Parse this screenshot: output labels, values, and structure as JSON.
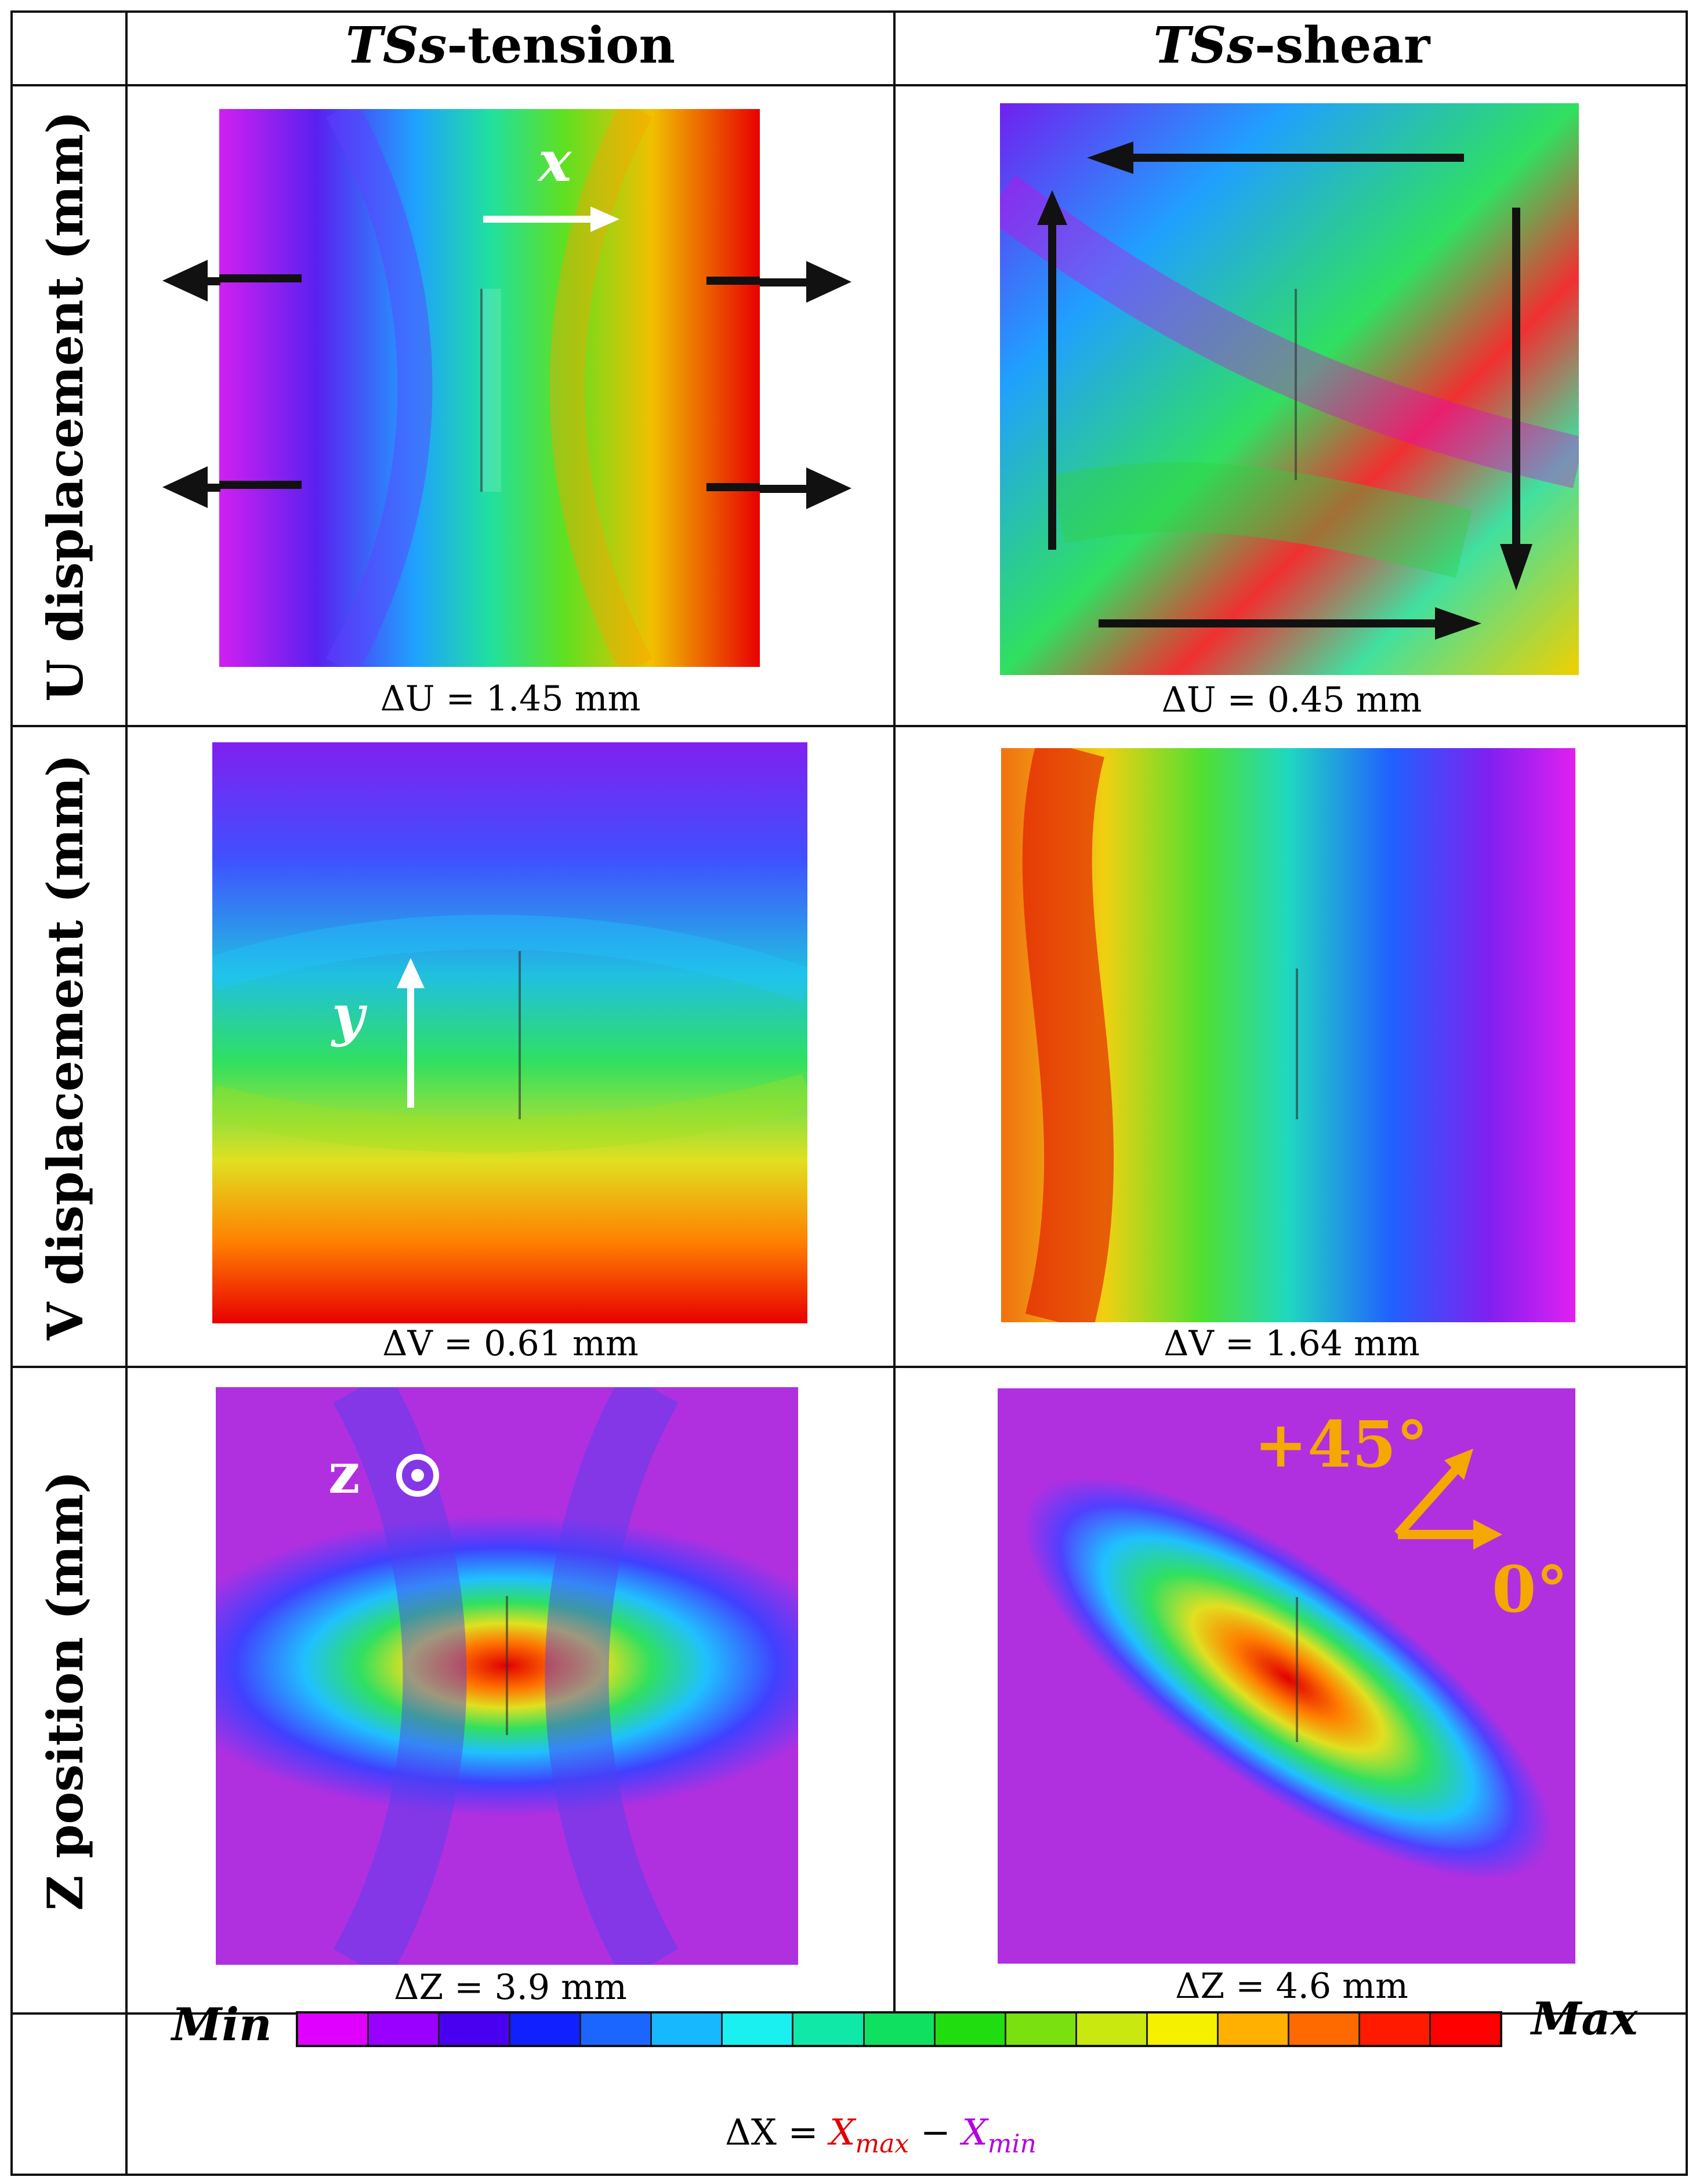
{
  "columns": {
    "tension": {
      "prefix": "TSs",
      "suffix": "-tension"
    },
    "shear": {
      "prefix": "TSs",
      "suffix": "-shear"
    }
  },
  "rows": {
    "u": "U displacement (mm)",
    "v": "V displacement (mm)",
    "z": "Z position (mm)"
  },
  "captions": {
    "u_tension": "ΔU = 1.45 mm",
    "u_shear": "ΔU = 0.45 mm",
    "v_tension": "ΔV = 0.61 mm",
    "v_shear": "ΔV = 1.64 mm",
    "z_tension": "ΔZ = 3.9 mm",
    "z_shear": "ΔZ = 4.6 mm"
  },
  "annotations": {
    "x_axis": "x",
    "y_axis": "y",
    "z_axis": "z",
    "angle_45": "+45°",
    "angle_0": "0°"
  },
  "scale": {
    "min_label": "Min",
    "max_label": "Max",
    "formula_lhs": "ΔX = ",
    "x_symbol": "X",
    "max_sub": "max",
    "minus": " − ",
    "min_sub": "min",
    "colors": [
      "#e000ff",
      "#9a00ff",
      "#4a00f0",
      "#1020ff",
      "#1a66ff",
      "#18b8ff",
      "#1af0f0",
      "#10e8a8",
      "#10e060",
      "#20dd10",
      "#7ae010",
      "#c8e810",
      "#f5f000",
      "#ffb000",
      "#ff6a00",
      "#ff1a00",
      "#ff0000"
    ]
  }
}
